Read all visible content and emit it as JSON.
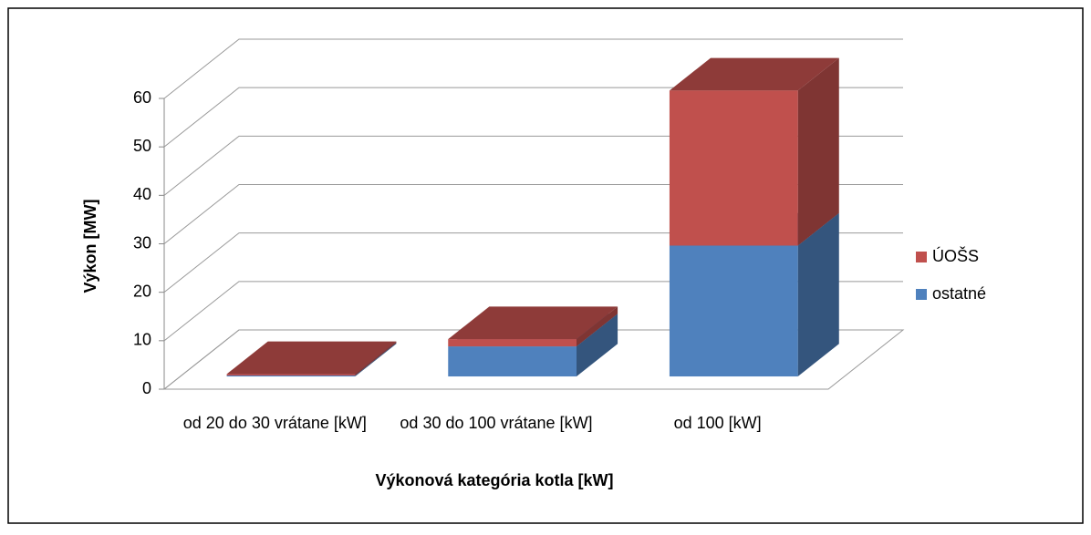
{
  "chart_data": {
    "type": "bar3d_stacked",
    "x_label": "Výkonová kategória kotla [kW]",
    "y_label": "Výkon [MW]",
    "categories": [
      "od 20 do 30 vrátane [kW]",
      "od 30 do 100 vrátane [kW]",
      "od 100 [kW]"
    ],
    "series": [
      {
        "name": "ostatné",
        "color": "#4f81bd",
        "values": [
          0.2,
          6.2,
          27
        ]
      },
      {
        "name": "ÚOŠS",
        "color": "#c0504d",
        "values": [
          0.3,
          1.5,
          32
        ]
      }
    ],
    "ylim": [
      0,
      60
    ],
    "yticks": [
      0,
      10,
      20,
      30,
      40,
      50,
      60
    ],
    "grid": true,
    "legend": "right"
  }
}
